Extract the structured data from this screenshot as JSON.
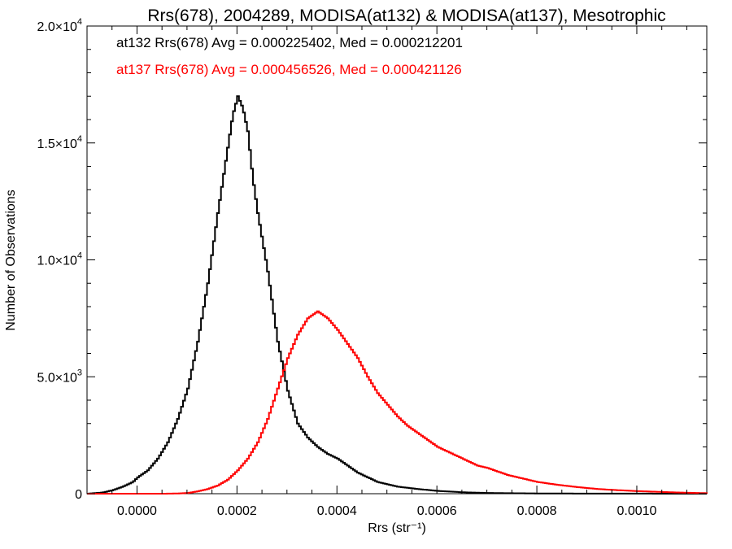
{
  "chart_data": {
    "type": "line",
    "title": "Rrs(678), 2004289, MODISA(at132) & MODISA(at137), Mesotrophic",
    "xlabel": "Rrs (str⁻¹)",
    "ylabel": "Number of Observations",
    "xlim": [
      -0.0001,
      0.00114
    ],
    "ylim": [
      0,
      20000
    ],
    "x_ticks": [
      {
        "value": 0.0,
        "label": "0.0000"
      },
      {
        "value": 0.0002,
        "label": "0.0002"
      },
      {
        "value": 0.0004,
        "label": "0.0004"
      },
      {
        "value": 0.0006,
        "label": "0.0006"
      },
      {
        "value": 0.0008,
        "label": "0.0008"
      },
      {
        "value": 0.001,
        "label": "0.0010"
      }
    ],
    "y_ticks": [
      {
        "value": 0,
        "mant": "0",
        "exp": ""
      },
      {
        "value": 5000,
        "mant": "5.0×10",
        "exp": "3"
      },
      {
        "value": 10000,
        "mant": "1.0×10",
        "exp": "4"
      },
      {
        "value": 15000,
        "mant": "1.5×10",
        "exp": "4"
      },
      {
        "value": 20000,
        "mant": "2.0×10",
        "exp": "4"
      }
    ],
    "grid": false,
    "series": [
      {
        "name": "at132",
        "color": "#000000",
        "annotation": "at132 Rrs(678) Avg = 0.000225402, Med = 0.000212201",
        "x": [
          -0.0001,
          -7e-05,
          -5e-05,
          -3e-05,
          -1e-05,
          0.0,
          2e-05,
          4e-05,
          6e-05,
          8e-05,
          0.0001,
          0.00012,
          0.00014,
          0.00016,
          0.00018,
          0.00019,
          0.0002,
          0.00021,
          0.00022,
          0.00023,
          0.00024,
          0.00026,
          0.00028,
          0.0003,
          0.00032,
          0.00034,
          0.00036,
          0.00038,
          0.0004,
          0.00042,
          0.00044,
          0.00048,
          0.00052,
          0.00056,
          0.0006,
          0.00065,
          0.0007,
          0.0008,
          0.0009,
          0.00114
        ],
        "y": [
          0,
          50,
          150,
          300,
          500,
          700,
          1000,
          1500,
          2200,
          3200,
          4500,
          6500,
          9000,
          12000,
          14800,
          16200,
          17000,
          16500,
          15500,
          13500,
          12000,
          9500,
          6500,
          4400,
          3000,
          2400,
          2000,
          1700,
          1500,
          1200,
          900,
          500,
          300,
          200,
          120,
          60,
          30,
          10,
          5,
          0
        ]
      },
      {
        "name": "at137",
        "color": "#ff0000",
        "annotation": "at137 Rrs(678) Avg = 0.000456526, Med = 0.000421126",
        "x": [
          -0.0001,
          5e-05,
          8e-05,
          0.0001,
          0.00012,
          0.00014,
          0.00016,
          0.00018,
          0.0002,
          0.00022,
          0.00024,
          0.00026,
          0.00028,
          0.0003,
          0.00032,
          0.00034,
          0.00036,
          0.00038,
          0.0004,
          0.00042,
          0.00044,
          0.00046,
          0.00048,
          0.0005,
          0.00052,
          0.00054,
          0.00056,
          0.00058,
          0.0006,
          0.00062,
          0.00064,
          0.00066,
          0.00068,
          0.0007,
          0.00072,
          0.00074,
          0.00076,
          0.00078,
          0.0008,
          0.00084,
          0.00088,
          0.00092,
          0.00096,
          0.001,
          0.00104,
          0.00108,
          0.00114
        ],
        "y": [
          0,
          0,
          10,
          30,
          100,
          200,
          350,
          600,
          1000,
          1500,
          2200,
          3200,
          4500,
          5800,
          6800,
          7500,
          7800,
          7500,
          7000,
          6400,
          5800,
          5000,
          4300,
          3800,
          3300,
          2900,
          2600,
          2300,
          2000,
          1800,
          1600,
          1400,
          1200,
          1100,
          950,
          800,
          700,
          600,
          500,
          380,
          280,
          200,
          150,
          110,
          80,
          50,
          20
        ]
      }
    ]
  }
}
